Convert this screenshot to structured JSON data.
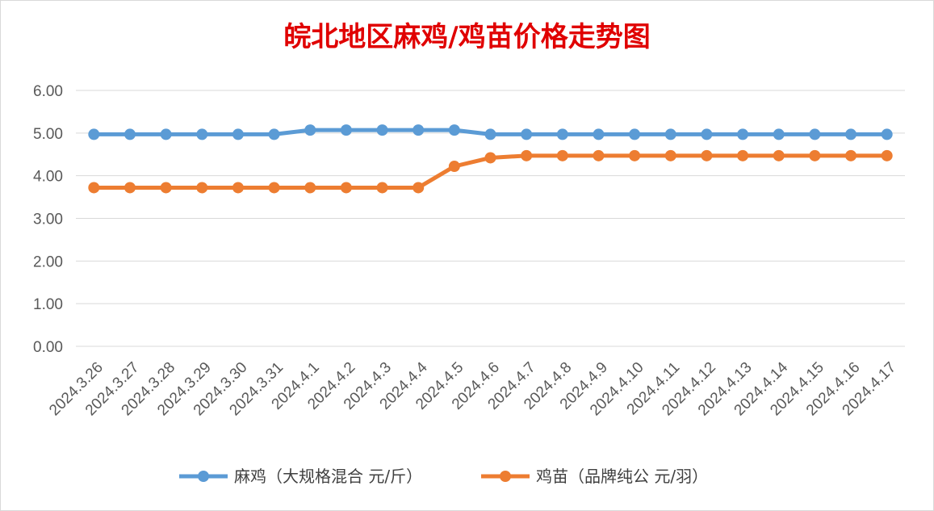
{
  "chart_data": {
    "type": "line",
    "title": "皖北地区麻鸡/鸡苗价格走势图",
    "xlabel": "",
    "ylabel": "",
    "ylim": [
      0,
      6
    ],
    "yticks": [
      "0.00",
      "1.00",
      "2.00",
      "3.00",
      "4.00",
      "5.00",
      "6.00"
    ],
    "grid": true,
    "legend_position": "bottom",
    "categories": [
      "2024.3.26",
      "2024.3.27",
      "2024.3.28",
      "2024.3.29",
      "2024.3.30",
      "2024.3.31",
      "2024.4.1",
      "2024.4.2",
      "2024.4.3",
      "2024.4.4",
      "2024.4.5",
      "2024.4.6",
      "2024.4.7",
      "2024.4.8",
      "2024.4.9",
      "2024.4.10",
      "2024.4.11",
      "2024.4.12",
      "2024.4.13",
      "2024.4.14",
      "2024.4.15",
      "2024.4.16",
      "2024.4.17"
    ],
    "series": [
      {
        "name": "麻鸡（大规格混合 元/斤）",
        "color": "#5b9bd5",
        "values": [
          4.97,
          4.97,
          4.97,
          4.97,
          4.97,
          4.97,
          5.07,
          5.07,
          5.07,
          5.07,
          5.07,
          4.97,
          4.97,
          4.97,
          4.97,
          4.97,
          4.97,
          4.97,
          4.97,
          4.97,
          4.97,
          4.97,
          4.97
        ]
      },
      {
        "name": "鸡苗（品牌纯公 元/羽）",
        "color": "#ed7d31",
        "values": [
          3.72,
          3.72,
          3.72,
          3.72,
          3.72,
          3.72,
          3.72,
          3.72,
          3.72,
          3.72,
          4.22,
          4.42,
          4.47,
          4.47,
          4.47,
          4.47,
          4.47,
          4.47,
          4.47,
          4.47,
          4.47,
          4.47,
          4.47
        ]
      }
    ]
  }
}
